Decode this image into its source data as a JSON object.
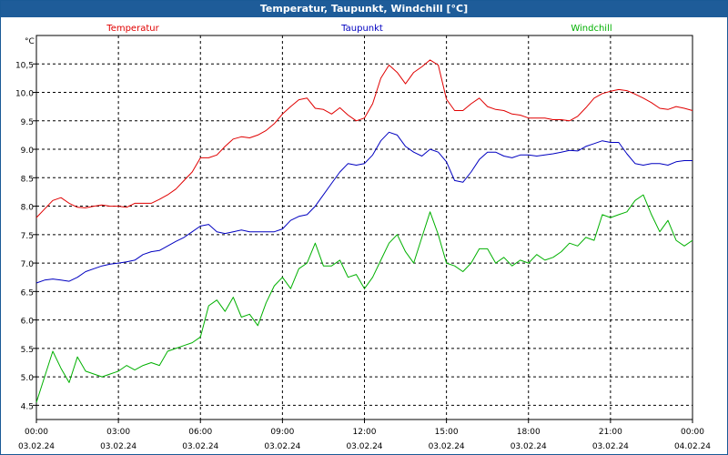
{
  "window": {
    "title": "Temperatur, Taupunkt, Windchill [°C]"
  },
  "chart_data": {
    "type": "line",
    "title": "Temperatur, Taupunkt, Windchill [°C]",
    "ylabel": "°C",
    "xlabel": "",
    "ylim": [
      4.25,
      11.0
    ],
    "xlim": [
      0,
      24
    ],
    "grid": true,
    "yticks": [
      4.5,
      5.0,
      5.5,
      6.0,
      6.5,
      7.0,
      7.5,
      8.0,
      8.5,
      9.0,
      9.5,
      10.0,
      10.5
    ],
    "ytick_labels": [
      "4.5",
      "5.0",
      "5.5",
      "6.0",
      "6.5",
      "7.0",
      "7.5",
      "8.0",
      "8.5",
      "9.0",
      "9.5",
      "10.0",
      "10,5"
    ],
    "xticks": [
      0,
      3,
      6,
      9,
      12,
      15,
      18,
      21,
      24
    ],
    "xtick_time": [
      "00:00",
      "03:00",
      "06:00",
      "09:00",
      "12:00",
      "15:00",
      "18:00",
      "21:00",
      "00:00"
    ],
    "xtick_date": [
      "03.02.24",
      "03.02.24",
      "03.02.24",
      "03.02.24",
      "03.02.24",
      "03.02.24",
      "03.02.24",
      "03.02.24",
      "04.02.24"
    ],
    "series": [
      {
        "name": "Temperatur",
        "color": "#e00000",
        "x": [
          0,
          0.3,
          0.6,
          0.9,
          1.2,
          1.5,
          1.8,
          2.1,
          2.4,
          2.7,
          3.0,
          3.3,
          3.6,
          3.9,
          4.2,
          4.5,
          4.8,
          5.1,
          5.4,
          5.7,
          6.0,
          6.3,
          6.6,
          6.9,
          7.2,
          7.5,
          7.8,
          8.1,
          8.4,
          8.7,
          9.0,
          9.3,
          9.6,
          9.9,
          10.2,
          10.5,
          10.8,
          11.1,
          11.4,
          11.7,
          12.0,
          12.3,
          12.6,
          12.9,
          13.2,
          13.5,
          13.8,
          14.1,
          14.4,
          14.7,
          15.0,
          15.3,
          15.6,
          15.9,
          16.2,
          16.5,
          16.8,
          17.1,
          17.4,
          17.7,
          18.0,
          18.3,
          18.6,
          18.9,
          19.2,
          19.5,
          19.8,
          20.1,
          20.4,
          20.7,
          21.0,
          21.3,
          21.6,
          21.9,
          22.2,
          22.5,
          22.8,
          23.1,
          23.4,
          23.7,
          24.0
        ],
        "values": [
          7.8,
          7.95,
          8.1,
          8.15,
          8.05,
          7.98,
          7.97,
          8.0,
          8.02,
          8.0,
          8.0,
          7.98,
          8.05,
          8.05,
          8.05,
          8.12,
          8.2,
          8.3,
          8.45,
          8.6,
          8.85,
          8.85,
          8.9,
          9.05,
          9.18,
          9.22,
          9.2,
          9.25,
          9.33,
          9.45,
          9.62,
          9.75,
          9.87,
          9.9,
          9.72,
          9.7,
          9.62,
          9.73,
          9.6,
          9.5,
          9.55,
          9.8,
          10.25,
          10.48,
          10.35,
          10.15,
          10.35,
          10.45,
          10.57,
          10.48,
          9.88,
          9.68,
          9.68,
          9.8,
          9.9,
          9.75,
          9.7,
          9.68,
          9.62,
          9.6,
          9.55,
          9.55,
          9.55,
          9.52,
          9.52,
          9.5,
          9.58,
          9.73,
          9.9,
          9.98,
          10.02,
          10.05,
          10.03,
          9.97,
          9.9,
          9.82,
          9.72,
          9.7,
          9.75,
          9.72,
          9.68
        ]
      },
      {
        "name": "Taupunkt",
        "color": "#0000c0",
        "x": [
          0,
          0.3,
          0.6,
          0.9,
          1.2,
          1.5,
          1.8,
          2.1,
          2.4,
          2.7,
          3.0,
          3.3,
          3.6,
          3.9,
          4.2,
          4.5,
          4.8,
          5.1,
          5.4,
          5.7,
          6.0,
          6.3,
          6.6,
          6.9,
          7.2,
          7.5,
          7.8,
          8.1,
          8.4,
          8.7,
          9.0,
          9.3,
          9.6,
          9.9,
          10.2,
          10.5,
          10.8,
          11.1,
          11.4,
          11.7,
          12.0,
          12.3,
          12.6,
          12.9,
          13.2,
          13.5,
          13.8,
          14.1,
          14.4,
          14.7,
          15.0,
          15.3,
          15.6,
          15.9,
          16.2,
          16.5,
          16.8,
          17.1,
          17.4,
          17.7,
          18.0,
          18.3,
          18.6,
          18.9,
          19.2,
          19.5,
          19.8,
          20.1,
          20.4,
          20.7,
          21.0,
          21.3,
          21.6,
          21.9,
          22.2,
          22.5,
          22.8,
          23.1,
          23.4,
          23.7,
          24.0
        ],
        "values": [
          6.65,
          6.7,
          6.72,
          6.7,
          6.68,
          6.75,
          6.85,
          6.9,
          6.95,
          6.98,
          7.0,
          7.02,
          7.05,
          7.15,
          7.2,
          7.22,
          7.3,
          7.38,
          7.45,
          7.55,
          7.65,
          7.68,
          7.55,
          7.52,
          7.55,
          7.58,
          7.55,
          7.55,
          7.55,
          7.55,
          7.6,
          7.75,
          7.82,
          7.85,
          8.0,
          8.2,
          8.4,
          8.6,
          8.75,
          8.72,
          8.75,
          8.9,
          9.15,
          9.3,
          9.25,
          9.05,
          8.95,
          8.88,
          9.0,
          8.95,
          8.78,
          8.45,
          8.42,
          8.6,
          8.82,
          8.95,
          8.95,
          8.88,
          8.85,
          8.9,
          8.9,
          8.88,
          8.9,
          8.92,
          8.95,
          8.98,
          8.97,
          9.05,
          9.1,
          9.15,
          9.12,
          9.12,
          8.92,
          8.75,
          8.72,
          8.75,
          8.75,
          8.72,
          8.78,
          8.8,
          8.8
        ]
      },
      {
        "name": "Windchill",
        "color": "#00b000",
        "x": [
          0,
          0.3,
          0.6,
          0.9,
          1.2,
          1.5,
          1.8,
          2.1,
          2.4,
          2.7,
          3.0,
          3.3,
          3.6,
          3.9,
          4.2,
          4.5,
          4.8,
          5.1,
          5.4,
          5.7,
          6.0,
          6.3,
          6.6,
          6.9,
          7.2,
          7.5,
          7.8,
          8.1,
          8.4,
          8.7,
          9.0,
          9.3,
          9.6,
          9.9,
          10.2,
          10.5,
          10.8,
          11.1,
          11.4,
          11.7,
          12.0,
          12.3,
          12.6,
          12.9,
          13.2,
          13.5,
          13.8,
          14.1,
          14.4,
          14.7,
          15.0,
          15.3,
          15.6,
          15.9,
          16.2,
          16.5,
          16.8,
          17.1,
          17.4,
          17.7,
          18.0,
          18.3,
          18.6,
          18.9,
          19.2,
          19.5,
          19.8,
          20.1,
          20.4,
          20.7,
          21.0,
          21.3,
          21.6,
          21.9,
          22.2,
          22.5,
          22.8,
          23.1,
          23.4,
          23.7,
          24.0
        ],
        "values": [
          4.55,
          5.0,
          5.45,
          5.15,
          4.9,
          5.35,
          5.1,
          5.05,
          5.0,
          5.05,
          5.1,
          5.2,
          5.12,
          5.2,
          5.25,
          5.2,
          5.45,
          5.5,
          5.55,
          5.6,
          5.7,
          6.25,
          6.35,
          6.15,
          6.4,
          6.05,
          6.1,
          5.9,
          6.3,
          6.6,
          6.75,
          6.55,
          6.9,
          7.0,
          7.35,
          6.95,
          6.95,
          7.05,
          6.75,
          6.8,
          6.55,
          6.75,
          7.05,
          7.35,
          7.5,
          7.2,
          7.0,
          7.45,
          7.9,
          7.5,
          7.0,
          6.95,
          6.85,
          7.0,
          7.25,
          7.25,
          7.0,
          7.1,
          6.95,
          7.05,
          7.0,
          7.15,
          7.05,
          7.1,
          7.2,
          7.35,
          7.3,
          7.45,
          7.4,
          7.85,
          7.8,
          7.85,
          7.9,
          8.1,
          8.2,
          7.85,
          7.55,
          7.75,
          7.4,
          7.3,
          7.4
        ]
      }
    ]
  }
}
